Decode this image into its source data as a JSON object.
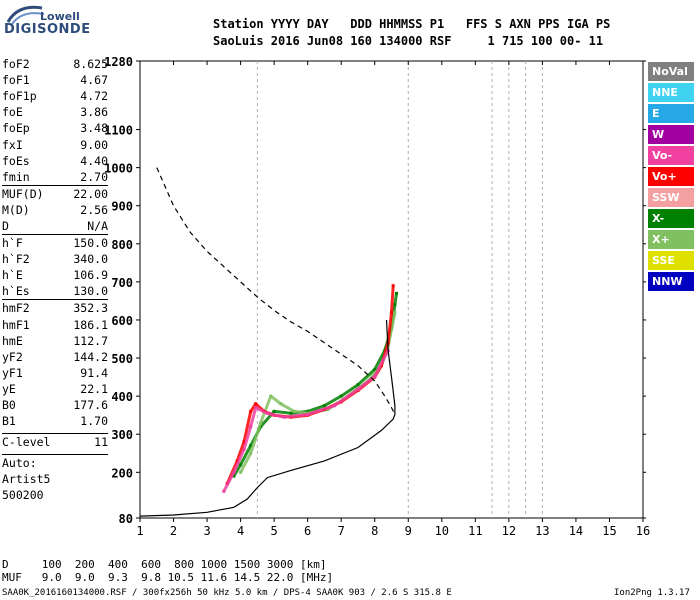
{
  "logo": {
    "top": "Lowell",
    "main": "DIGISONDE"
  },
  "header": {
    "line1": "Station YYYY DAY   DDD HHMMSS P1   FFS S AXN PPS IGA PS",
    "line2": "SaoLuis 2016 Jun08 160 134000 RSF     1 715 100 00- 11"
  },
  "params": [
    {
      "name": "foF2",
      "value": "8.625"
    },
    {
      "name": "foF1",
      "value": "4.67"
    },
    {
      "name": "foF1p",
      "value": "4.72"
    },
    {
      "name": "foE",
      "value": "3.86"
    },
    {
      "name": "foEp",
      "value": "3.48"
    },
    {
      "name": "fxI",
      "value": "9.00"
    },
    {
      "name": "foEs",
      "value": "4.40"
    },
    {
      "name": "fmin",
      "value": "2.70"
    },
    {
      "name": "MUF(D)",
      "value": "22.00",
      "sep": true
    },
    {
      "name": "M(D)",
      "value": "2.56"
    },
    {
      "name": "D",
      "value": "N/A"
    },
    {
      "name": "h`F",
      "value": "150.0",
      "sep": true
    },
    {
      "name": "h`F2",
      "value": "340.0"
    },
    {
      "name": "h`E",
      "value": "106.9"
    },
    {
      "name": "h`Es",
      "value": "130.0"
    },
    {
      "name": "hmF2",
      "value": "352.3",
      "sep": true
    },
    {
      "name": "hmF1",
      "value": "186.1"
    },
    {
      "name": "hmE",
      "value": "112.7"
    },
    {
      "name": "yF2",
      "value": "144.2"
    },
    {
      "name": "yF1",
      "value": "91.4"
    },
    {
      "name": "yE",
      "value": "22.1"
    },
    {
      "name": "B0",
      "value": "177.6"
    },
    {
      "name": "B1",
      "value": "1.70"
    },
    {
      "name": "C-level",
      "value": "11",
      "sep": true,
      "gap": true
    },
    {
      "name": "Auto:",
      "value": "",
      "sep": true,
      "gap": true
    },
    {
      "name": "Artist5",
      "value": ""
    },
    {
      "name": "500200",
      "value": ""
    }
  ],
  "legend": [
    {
      "label": "NoVal",
      "color": "#808080"
    },
    {
      "label": "NNE",
      "color": "#3fd3f0"
    },
    {
      "label": "E",
      "color": "#27a8e6"
    },
    {
      "label": "W",
      "color": "#a000a0"
    },
    {
      "label": "Vo-",
      "color": "#f040a0"
    },
    {
      "label": "Vo+",
      "color": "#ff0000"
    },
    {
      "label": "SSW",
      "color": "#f4a0a0"
    },
    {
      "label": "X-",
      "color": "#008000"
    },
    {
      "label": "X+",
      "color": "#80c060"
    },
    {
      "label": "SSE",
      "color": "#e0e000"
    },
    {
      "label": "NNW",
      "color": "#0000c0"
    }
  ],
  "bottom": {
    "line1": "D     100  200  400  600  800 1000 1500 3000 [km]",
    "line2": "MUF   9.0  9.0  9.3  9.8 10.5 11.6 14.5 22.0 [MHz]",
    "footer_left": "SAA0K_2016160134000.RSF / 300fx256h 50 kHz 5.0 km / DPS-4 SAA0K 903 / 2.6 S 315.8 E",
    "footer_right": "Ion2Png 1.3.17"
  },
  "chart_data": {
    "type": "scatter",
    "title": "",
    "xlabel": "",
    "ylabel": "",
    "xlim": [
      1,
      16
    ],
    "ylim": [
      80,
      1280
    ],
    "x_ticks": [
      1,
      2,
      3,
      4,
      5,
      6,
      7,
      8,
      9,
      10,
      11,
      12,
      13,
      14,
      15,
      16
    ],
    "y_ticks": [
      80,
      200,
      300,
      400,
      500,
      600,
      700,
      800,
      900,
      1000,
      1100,
      1280
    ],
    "grid_x": [
      4.5,
      9,
      11.5,
      12,
      12.5,
      13
    ],
    "series": [
      {
        "name": "X-",
        "color": "#008000",
        "style": "trace",
        "points": [
          [
            3.8,
            190
          ],
          [
            4.0,
            220
          ],
          [
            4.3,
            270
          ],
          [
            4.6,
            320
          ],
          [
            5.0,
            360
          ],
          [
            5.5,
            355
          ],
          [
            6.0,
            360
          ],
          [
            6.5,
            375
          ],
          [
            7.0,
            400
          ],
          [
            7.5,
            430
          ],
          [
            8.0,
            470
          ],
          [
            8.3,
            520
          ],
          [
            8.5,
            580
          ],
          [
            8.6,
            640
          ],
          [
            8.65,
            670
          ]
        ]
      },
      {
        "name": "X+",
        "color": "#80c060",
        "style": "trace",
        "points": [
          [
            4.0,
            200
          ],
          [
            4.3,
            250
          ],
          [
            4.6,
            330
          ],
          [
            4.9,
            400
          ],
          [
            5.2,
            380
          ],
          [
            5.6,
            360
          ],
          [
            6.0,
            355
          ],
          [
            6.6,
            365
          ],
          [
            7.2,
            400
          ],
          [
            7.8,
            440
          ],
          [
            8.2,
            480
          ],
          [
            8.4,
            530
          ],
          [
            8.6,
            620
          ]
        ]
      },
      {
        "name": "Vo+",
        "color": "#ff0000",
        "style": "trace",
        "points": [
          [
            3.6,
            170
          ],
          [
            3.9,
            230
          ],
          [
            4.1,
            280
          ],
          [
            4.3,
            360
          ],
          [
            4.45,
            380
          ],
          [
            4.7,
            360
          ],
          [
            5.0,
            350
          ],
          [
            5.5,
            345
          ],
          [
            6.0,
            350
          ],
          [
            6.5,
            365
          ],
          [
            7.0,
            385
          ],
          [
            7.5,
            415
          ],
          [
            8.0,
            450
          ],
          [
            8.2,
            480
          ],
          [
            8.4,
            540
          ],
          [
            8.5,
            620
          ],
          [
            8.55,
            690
          ]
        ]
      },
      {
        "name": "Vo-",
        "color": "#f040a0",
        "style": "trace",
        "points": [
          [
            3.5,
            150
          ],
          [
            3.8,
            200
          ],
          [
            4.1,
            260
          ],
          [
            4.3,
            320
          ],
          [
            4.45,
            370
          ],
          [
            4.8,
            355
          ],
          [
            5.3,
            345
          ],
          [
            6.0,
            352
          ],
          [
            6.8,
            375
          ],
          [
            7.5,
            418
          ],
          [
            8.0,
            452
          ],
          [
            8.4,
            520
          ]
        ]
      },
      {
        "name": "profile",
        "color": "#000000",
        "style": "line",
        "points": [
          [
            1.0,
            85
          ],
          [
            2.0,
            88
          ],
          [
            3.0,
            95
          ],
          [
            3.8,
            108
          ],
          [
            4.2,
            130
          ],
          [
            4.5,
            160
          ],
          [
            4.8,
            186
          ],
          [
            5.5,
            205
          ],
          [
            6.5,
            230
          ],
          [
            7.5,
            265
          ],
          [
            8.2,
            310
          ],
          [
            8.55,
            340
          ],
          [
            8.6,
            352
          ],
          [
            8.6,
            375
          ],
          [
            8.5,
            450
          ],
          [
            8.4,
            520
          ],
          [
            8.35,
            600
          ]
        ]
      },
      {
        "name": "MUF",
        "color": "#000000",
        "style": "dashed",
        "points": [
          [
            1.5,
            1000
          ],
          [
            2.0,
            900
          ],
          [
            2.5,
            830
          ],
          [
            3.0,
            780
          ],
          [
            3.5,
            740
          ],
          [
            4.0,
            700
          ],
          [
            4.5,
            660
          ],
          [
            5.0,
            625
          ],
          [
            5.5,
            595
          ],
          [
            6.0,
            570
          ],
          [
            6.5,
            540
          ],
          [
            7.0,
            510
          ],
          [
            7.5,
            480
          ],
          [
            8.0,
            440
          ],
          [
            8.3,
            400
          ],
          [
            8.5,
            370
          ],
          [
            8.6,
            352
          ]
        ]
      }
    ]
  }
}
